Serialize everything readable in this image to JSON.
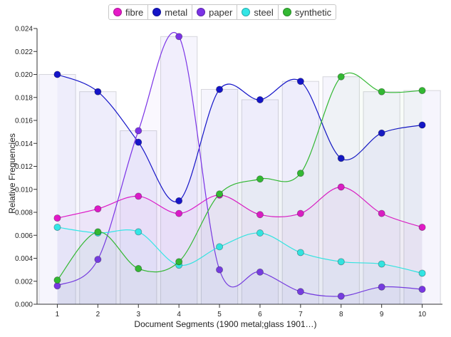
{
  "chart_data": {
    "type": "line",
    "xlabel": "Document Segments (1900 metal;glass 1901…)",
    "ylabel": "Relative Frequencies",
    "ylim": [
      0,
      0.024
    ],
    "yticks": [
      "0.000",
      "0.002",
      "0.004",
      "0.006",
      "0.008",
      "0.010",
      "0.012",
      "0.014",
      "0.016",
      "0.018",
      "0.020",
      "0.022",
      "0.024"
    ],
    "categories": [
      "1",
      "2",
      "3",
      "4",
      "5",
      "6",
      "7",
      "8",
      "9",
      "10"
    ],
    "legend_position": "top-center",
    "series": [
      {
        "name": "fibre",
        "color": "#e619c8",
        "values": [
          0.0075,
          0.0083,
          0.0094,
          0.0079,
          0.0095,
          0.0078,
          0.0079,
          0.0102,
          0.0079,
          0.0067
        ]
      },
      {
        "name": "metal",
        "color": "#1414c8",
        "values": [
          0.02,
          0.0185,
          0.0141,
          0.009,
          0.0187,
          0.0178,
          0.0194,
          0.0127,
          0.0149,
          0.0156
        ]
      },
      {
        "name": "paper",
        "color": "#7b33e6",
        "values": [
          0.0016,
          0.0039,
          0.0151,
          0.0233,
          0.003,
          0.0028,
          0.0011,
          0.0007,
          0.0015,
          0.0013
        ]
      },
      {
        "name": "steel",
        "color": "#33e6e6",
        "values": [
          0.0067,
          0.0062,
          0.0063,
          0.0034,
          0.005,
          0.0062,
          0.0045,
          0.0037,
          0.0035,
          0.0027
        ]
      },
      {
        "name": "synthetic",
        "color": "#33b833",
        "values": [
          0.0021,
          0.0063,
          0.0031,
          0.0037,
          0.0096,
          0.0109,
          0.0114,
          0.0198,
          0.0185,
          0.0186
        ]
      }
    ]
  }
}
